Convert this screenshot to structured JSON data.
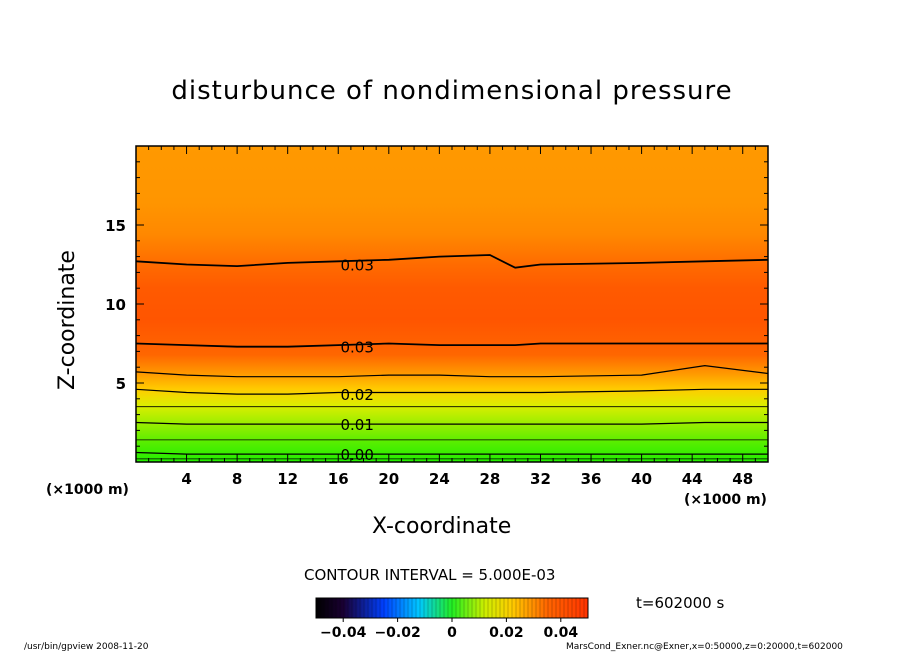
{
  "chart_data": {
    "type": "heatmap",
    "title": "disturbunce of nondimensional pressure",
    "xlabel": "X-coordinate",
    "ylabel": "Z-coordinate",
    "x_unit_label": "(×1000 m)",
    "xlim": [
      0,
      50
    ],
    "ylim": [
      0,
      20
    ],
    "x_ticks": [
      4,
      8,
      12,
      16,
      20,
      24,
      28,
      32,
      36,
      40,
      44,
      48
    ],
    "y_ticks": [
      5,
      10,
      15
    ],
    "contour_interval": "CONTOUR INTERVAL = 5.000E-03",
    "contour_labels": [
      {
        "text": "0.03",
        "x": 17.5,
        "z": 12.5
      },
      {
        "text": "0.03",
        "x": 17.5,
        "z": 7.3
      },
      {
        "text": "0.02",
        "x": 17.5,
        "z": 4.3
      },
      {
        "text": "0.01",
        "x": 17.5,
        "z": 2.4
      },
      {
        "text": "0.00",
        "x": 17.5,
        "z": 0.5
      }
    ],
    "contour_levels": [
      {
        "z": [
          12.7,
          12.5,
          12.4,
          12.6,
          12.7,
          12.8,
          13.0,
          13.1,
          12.3,
          12.5,
          12.6,
          12.7,
          12.8
        ]
      },
      {
        "z": [
          7.5,
          7.4,
          7.3,
          7.3,
          7.4,
          7.5,
          7.4,
          7.4,
          7.4,
          7.5,
          7.5,
          7.5,
          7.5
        ]
      },
      {
        "z": [
          5.7,
          5.5,
          5.4,
          5.4,
          5.4,
          5.5,
          5.5,
          5.4,
          5.4,
          5.4,
          5.5,
          6.1,
          5.6
        ]
      },
      {
        "z": [
          4.6,
          4.4,
          4.3,
          4.3,
          4.4,
          4.4,
          4.4,
          4.4,
          4.4,
          4.4,
          4.5,
          4.6,
          4.6
        ]
      },
      {
        "z": [
          2.5,
          2.4,
          2.4,
          2.4,
          2.4,
          2.4,
          2.4,
          2.4,
          2.4,
          2.4,
          2.4,
          2.5,
          2.5
        ]
      },
      {
        "z": [
          0.6,
          0.5,
          0.5,
          0.5,
          0.5,
          0.5,
          0.5,
          0.5,
          0.5,
          0.5,
          0.5,
          0.5,
          0.5
        ]
      }
    ],
    "contour_x": [
      0,
      4,
      8,
      12,
      16,
      20,
      24,
      28,
      30,
      32,
      40,
      45,
      50
    ],
    "colorbar": {
      "range": [
        -0.05,
        0.05
      ],
      "ticks": [
        "−0.04",
        "−0.02",
        "0",
        "0.02",
        "0.04"
      ],
      "tick_values": [
        -0.04,
        -0.02,
        0,
        0.02,
        0.04
      ]
    }
  },
  "annotations": {
    "time": "t=602000 s",
    "footer_left": "/usr/bin/gpview   2008-11-20",
    "footer_right": "MarsCond_Exner.nc@Exner,x=0:50000,z=0:20000,t=602000"
  },
  "colors": {
    "top_band": "#ff9900",
    "core": "#ff5500",
    "low_yellow": "#eeee00",
    "bottom_green": "#22ee00"
  }
}
